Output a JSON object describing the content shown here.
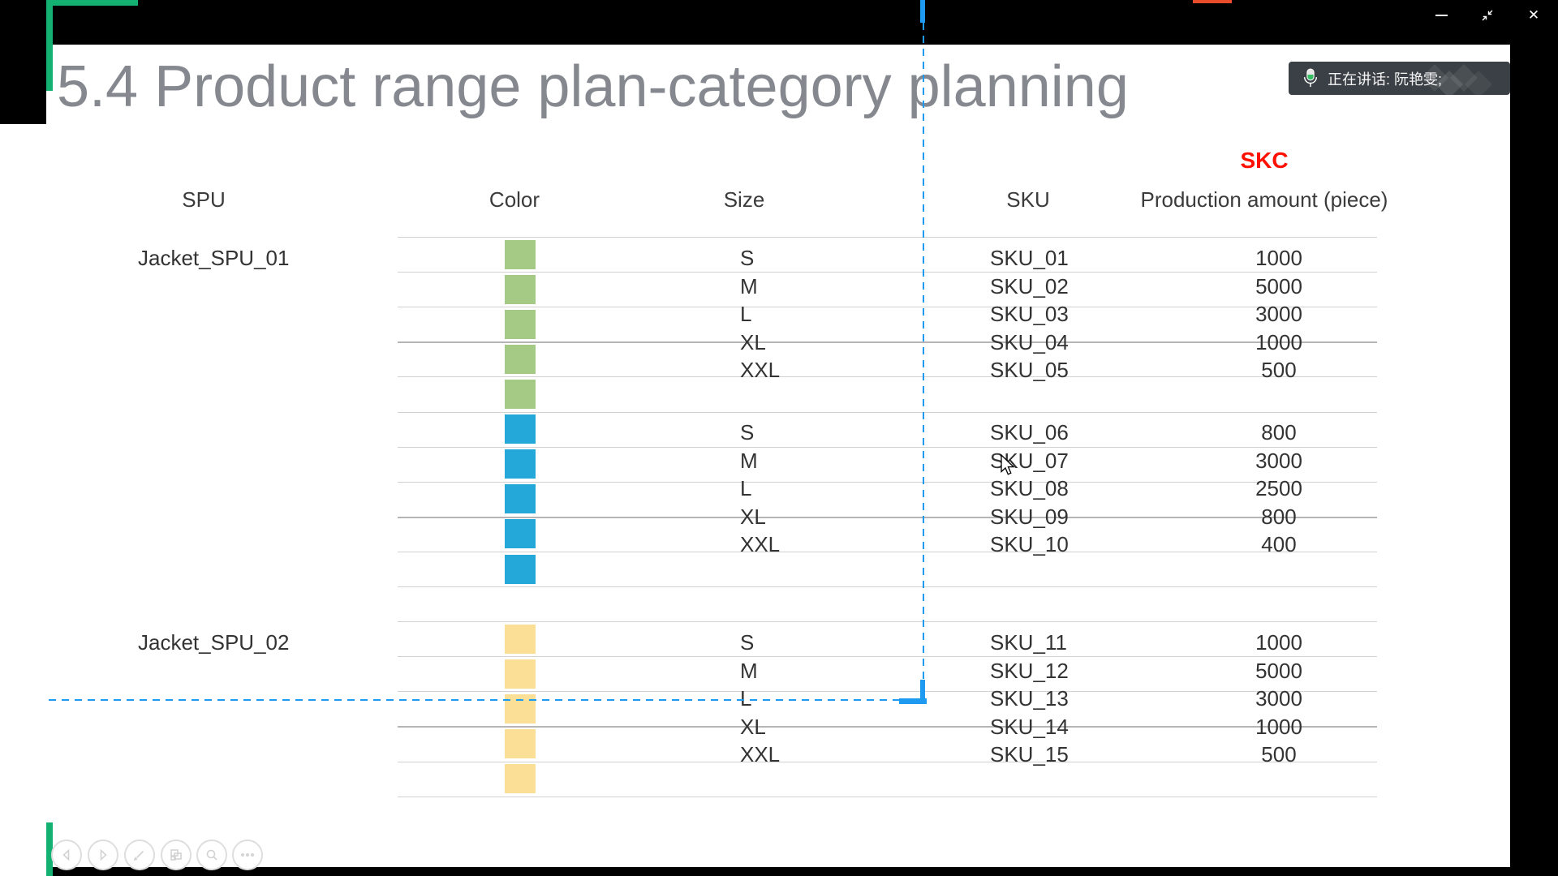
{
  "window": {
    "controls": [
      {
        "name": "minimize"
      },
      {
        "name": "restore"
      },
      {
        "name": "close"
      }
    ],
    "speaking_indicator": {
      "text": "正在讲话: 阮艳雯;"
    }
  },
  "slide": {
    "title": "5.4 Product range plan-category planning",
    "skc_label": "SKC",
    "columns": [
      "SPU",
      "Color",
      "Size",
      "SKU",
      "Production amount (piece)"
    ],
    "groups": [
      {
        "spu": "Jacket_SPU_01",
        "swatch_color": "#a5ca85",
        "rows": [
          {
            "size": "S",
            "sku": "SKU_01",
            "amount": 1000
          },
          {
            "size": "M",
            "sku": "SKU_02",
            "amount": 5000
          },
          {
            "size": "L",
            "sku": "SKU_03",
            "amount": 3000
          },
          {
            "size": "XL",
            "sku": "SKU_04",
            "amount": 1000
          },
          {
            "size": "XXL",
            "sku": "SKU_05",
            "amount": 500
          }
        ]
      },
      {
        "spu": "",
        "swatch_color": "#24a8da",
        "rows": [
          {
            "size": "S",
            "sku": "SKU_06",
            "amount": 800
          },
          {
            "size": "M",
            "sku": "SKU_07",
            "amount": 3000
          },
          {
            "size": "L",
            "sku": "SKU_08",
            "amount": 2500
          },
          {
            "size": "XL",
            "sku": "SKU_09",
            "amount": 800
          },
          {
            "size": "XXL",
            "sku": "SKU_10",
            "amount": 400
          }
        ]
      },
      {
        "spu": "Jacket_SPU_02",
        "swatch_color": "#fbdf97",
        "rows": [
          {
            "size": "S",
            "sku": "SKU_11",
            "amount": 1000
          },
          {
            "size": "M",
            "sku": "SKU_12",
            "amount": 5000
          },
          {
            "size": "L",
            "sku": "SKU_13",
            "amount": 3000
          },
          {
            "size": "XL",
            "sku": "SKU_14",
            "amount": 1000
          },
          {
            "size": "XXL",
            "sku": "SKU_15",
            "amount": 500
          }
        ]
      }
    ]
  },
  "toolbar": {
    "icons": [
      "previous-slide",
      "next-slide",
      "pen",
      "slide-sorter",
      "zoom",
      "more-options"
    ]
  },
  "colors": {
    "marker_green": "#13b273",
    "annotation_blue": "#1e9bf0",
    "skc_red": "#fe1000",
    "title_gray": "#85888f",
    "tab_orange": "#e84c2b",
    "speaking_bar": "#3b4046"
  }
}
